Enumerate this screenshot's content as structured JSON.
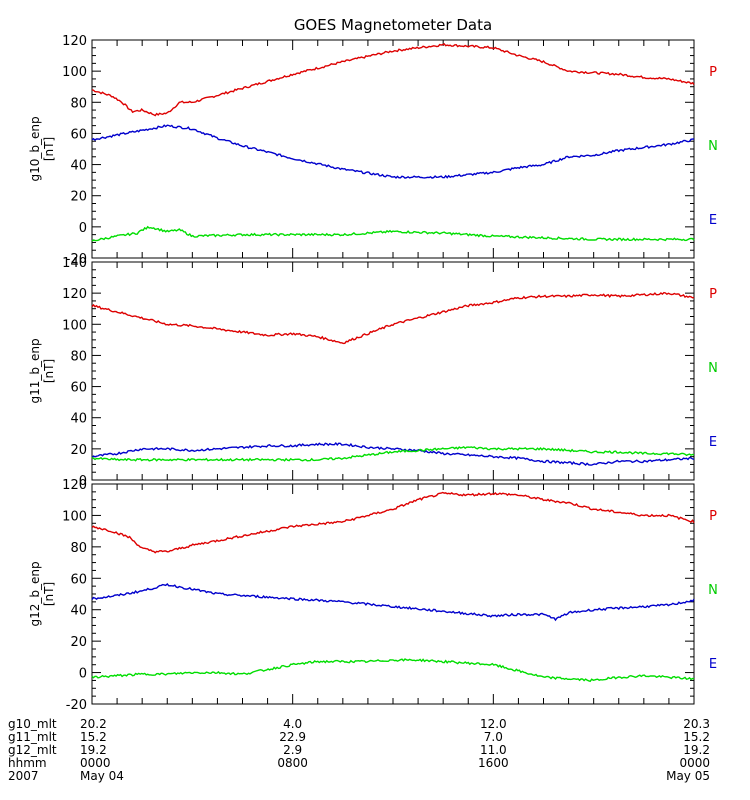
{
  "chart_data": {
    "type": "line",
    "title": "GOES Magnetometer Data",
    "x_range": [
      0,
      24
    ],
    "x_unit": "hours UT from 2007 May 04 0000",
    "line_colors": {
      "P": "#dd0000",
      "N": "#0000cc",
      "E": "#00dd00"
    },
    "legend_label_colors": {
      "P": "#dd0000",
      "N": "#00cc00",
      "E": "#0000cc"
    },
    "panels": [
      {
        "ylabel": "g10_b_enp",
        "unit": "[nT]",
        "ylim": [
          -20,
          120
        ],
        "yticks": [
          -20,
          0,
          20,
          40,
          60,
          80,
          100,
          120
        ],
        "legend": [
          "P",
          "N",
          "E"
        ],
        "series": [
          {
            "name": "P",
            "x": [
              0,
              0.8,
              1.2,
              1.6,
              2.0,
              2.5,
              3.0,
              3.5,
              4,
              6,
              8,
              10,
              12,
              14,
              15,
              16,
              17,
              18,
              19,
              20,
              21,
              22,
              23,
              24
            ],
            "y": [
              88,
              84,
              80,
              74,
              75,
              72,
              73,
              80,
              80,
              89,
              98,
              106,
              113,
              117,
              116,
              115,
              110,
              106,
              100,
              99,
              98,
              96,
              95,
              92
            ]
          },
          {
            "name": "N",
            "x": [
              0,
              1,
              2,
              3,
              4,
              5,
              6,
              8,
              10,
              12,
              14,
              16,
              17,
              18,
              19,
              20,
              21,
              22,
              23,
              24
            ],
            "y": [
              56,
              59,
              62,
              65,
              63,
              57,
              52,
              44,
              37,
              32,
              32,
              35,
              38,
              40,
              45,
              46,
              49,
              51,
              53,
              56
            ]
          },
          {
            "name": "E",
            "x": [
              0,
              1,
              1.8,
              2.0,
              2.3,
              3,
              3.5,
              4,
              6,
              8,
              10,
              12,
              14,
              16,
              18,
              20,
              22,
              24
            ],
            "y": [
              -9,
              -6,
              -4,
              -2,
              0,
              -3,
              -2,
              -6,
              -5,
              -5,
              -5,
              -3,
              -4,
              -6,
              -7,
              -8,
              -8,
              -8
            ]
          }
        ]
      },
      {
        "ylabel": "g11_b_enp",
        "unit": "[nT]",
        "ylim": [
          0,
          140
        ],
        "yticks": [
          0,
          20,
          40,
          60,
          80,
          100,
          120,
          140
        ],
        "legend": [
          "P",
          "N",
          "E"
        ],
        "series": [
          {
            "name": "P",
            "x": [
              0,
              1,
              2,
              3,
              4,
              5,
              6,
              7,
              8,
              9,
              10,
              11,
              12,
              13,
              14,
              15,
              16,
              17,
              18,
              19,
              20,
              21,
              22,
              23,
              24
            ],
            "y": [
              112,
              108,
              104,
              100,
              99,
              97,
              95,
              93,
              94,
              92,
              88,
              94,
              100,
              104,
              108,
              112,
              114,
              117,
              118,
              118,
              119,
              118,
              119,
              120,
              117
            ]
          },
          {
            "name": "N",
            "x": [
              0,
              1,
              2,
              3,
              4,
              5,
              6,
              7,
              8,
              9,
              10,
              11,
              12,
              13,
              14,
              15,
              16,
              17,
              18,
              19,
              20,
              21,
              22,
              23,
              24
            ],
            "y": [
              15,
              17,
              20,
              20,
              19,
              20,
              21,
              22,
              22,
              23,
              23,
              21,
              20,
              19,
              17,
              16,
              15,
              14,
              12,
              11,
              10,
              12,
              12,
              13,
              14
            ]
          },
          {
            "name": "E",
            "x": [
              0,
              1,
              2,
              3,
              4,
              5,
              6,
              7,
              8,
              9,
              10,
              11,
              12,
              13,
              14,
              15,
              16,
              17,
              18,
              19,
              20,
              21,
              22,
              23,
              24
            ],
            "y": [
              14,
              13,
              13,
              13,
              13,
              13,
              13,
              13,
              13,
              13,
              14,
              16,
              18,
              19,
              20,
              21,
              20,
              20,
              20,
              19,
              18,
              18,
              17,
              17,
              16
            ]
          }
        ]
      },
      {
        "ylabel": "g12_b_enp",
        "unit": "[nT]",
        "ylim": [
          -20,
          120
        ],
        "yticks": [
          -20,
          0,
          20,
          40,
          60,
          80,
          100,
          120
        ],
        "legend": [
          "P",
          "N",
          "E"
        ],
        "series": [
          {
            "name": "P",
            "x": [
              0,
              0.8,
              1.5,
              2.0,
              2.5,
              3.0,
              3.5,
              4,
              6,
              8,
              10,
              12,
              13,
              14,
              15,
              16,
              17,
              18,
              19,
              20,
              21,
              22,
              23,
              24
            ],
            "y": [
              93,
              90,
              86,
              79,
              77,
              77,
              79,
              81,
              87,
              93,
              96,
              104,
              110,
              114,
              113,
              114,
              113,
              110,
              108,
              104,
              102,
              100,
              100,
              96
            ]
          },
          {
            "name": "N",
            "x": [
              0,
              1,
              2,
              3,
              4,
              5,
              6,
              8,
              10,
              12,
              14,
              16,
              17,
              18,
              18.5,
              19,
              20,
              21,
              22,
              23,
              24
            ],
            "y": [
              47,
              49,
              52,
              56,
              53,
              50,
              49,
              47,
              45,
              42,
              39,
              36,
              37,
              37,
              34,
              38,
              40,
              41,
              42,
              43,
              46
            ]
          },
          {
            "name": "E",
            "x": [
              0,
              1,
              2,
              3,
              4,
              5,
              6,
              7,
              8,
              9,
              10,
              11,
              12,
              13,
              14,
              15,
              16,
              17,
              18,
              19,
              20,
              21,
              22,
              23,
              24
            ],
            "y": [
              -3,
              -2,
              -1,
              -1,
              0,
              0,
              -1,
              2,
              5,
              7,
              7,
              7,
              8,
              8,
              7,
              6,
              5,
              1,
              -3,
              -4,
              -5,
              -3,
              -2,
              -3,
              -4
            ]
          }
        ]
      }
    ],
    "x_axis_rows": [
      {
        "label": "g10_mlt",
        "values": [
          "20.2",
          "4.0",
          "12.0",
          "20.3"
        ]
      },
      {
        "label": "g11_mlt",
        "values": [
          "15.2",
          "22.9",
          "7.0",
          "15.2"
        ]
      },
      {
        "label": "g12_mlt",
        "values": [
          "19.2",
          "2.9",
          "11.0",
          "19.2"
        ]
      },
      {
        "label": "hhmm",
        "values": [
          "0000",
          "0800",
          "1600",
          "0000"
        ]
      },
      {
        "label": "2007",
        "values": [
          "May 04",
          "",
          "",
          "May 05"
        ]
      }
    ],
    "x_axis_row_positions_hours": [
      0,
      8,
      16,
      24
    ]
  }
}
